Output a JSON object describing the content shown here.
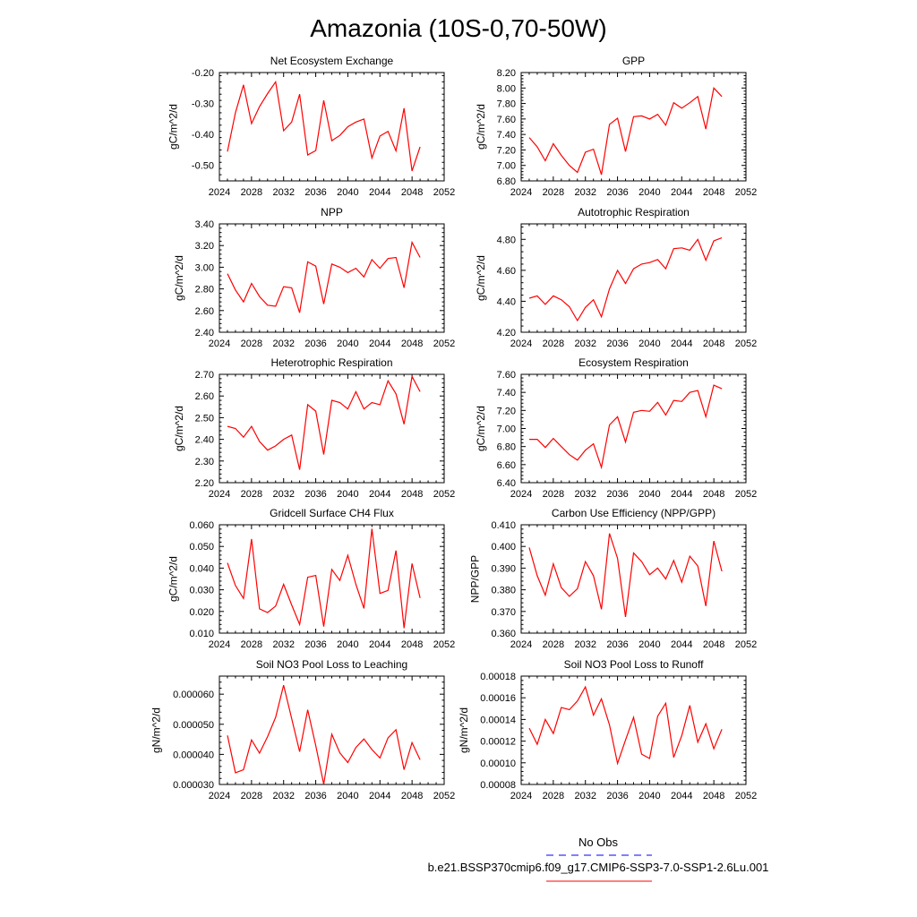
{
  "title": "Amazonia (10S-0,70-50W)",
  "legend": {
    "obs_label": "No Obs",
    "obs_color": "#0000ff",
    "model_label": "b.e21.BSSP370cmip6.f09_g17.CMIP6-SSP3-7.0-SSP1-2.6Lu.001",
    "model_color": "#ff0000"
  },
  "line_color": "#ff0000",
  "chart_data": [
    {
      "type": "line",
      "title": "Net Ecosystem Exchange",
      "ylabel": "gC/m^2/d",
      "xlim": [
        2024,
        2052
      ],
      "xticks": [
        "2024",
        "2028",
        "2032",
        "2036",
        "2040",
        "2044",
        "2048",
        "2052"
      ],
      "ylim": [
        -0.55,
        -0.2
      ],
      "yticks": [
        "-0.20",
        "-0.30",
        "-0.40",
        "-0.50"
      ],
      "x": [
        2025,
        2026,
        2027,
        2028,
        2029,
        2030,
        2031,
        2032,
        2033,
        2034,
        2035,
        2036,
        2037,
        2038,
        2039,
        2040,
        2041,
        2042,
        2043,
        2044,
        2045,
        2046,
        2047,
        2048,
        2049
      ],
      "values": [
        -0.455,
        -0.33,
        -0.24,
        -0.365,
        -0.31,
        -0.268,
        -0.23,
        -0.388,
        -0.36,
        -0.27,
        -0.466,
        -0.452,
        -0.29,
        -0.42,
        -0.403,
        -0.375,
        -0.36,
        -0.35,
        -0.476,
        -0.405,
        -0.39,
        -0.453,
        -0.315,
        -0.518,
        -0.44
      ]
    },
    {
      "type": "line",
      "title": "GPP",
      "ylabel": "gC/m^2/d",
      "xlim": [
        2024,
        2052
      ],
      "xticks": [
        "2024",
        "2028",
        "2032",
        "2036",
        "2040",
        "2044",
        "2048",
        "2052"
      ],
      "ylim": [
        6.8,
        8.2
      ],
      "yticks": [
        "6.80",
        "7.00",
        "7.20",
        "7.40",
        "7.60",
        "7.80",
        "8.00",
        "8.20"
      ],
      "x": [
        2025,
        2026,
        2027,
        2028,
        2029,
        2030,
        2031,
        2032,
        2033,
        2034,
        2035,
        2036,
        2037,
        2038,
        2039,
        2040,
        2041,
        2042,
        2043,
        2044,
        2045,
        2046,
        2047,
        2048,
        2049
      ],
      "values": [
        7.36,
        7.24,
        7.06,
        7.28,
        7.13,
        7.0,
        6.91,
        7.17,
        7.21,
        6.88,
        7.53,
        7.61,
        7.18,
        7.63,
        7.64,
        7.6,
        7.66,
        7.52,
        7.81,
        7.74,
        7.81,
        7.89,
        7.47,
        8.0,
        7.89
      ]
    },
    {
      "type": "line",
      "title": "NPP",
      "ylabel": "gC/m^2/d",
      "xlim": [
        2024,
        2052
      ],
      "xticks": [
        "2024",
        "2028",
        "2032",
        "2036",
        "2040",
        "2044",
        "2048",
        "2052"
      ],
      "ylim": [
        2.4,
        3.4
      ],
      "yticks": [
        "2.40",
        "2.60",
        "2.80",
        "3.00",
        "3.20",
        "3.40"
      ],
      "x": [
        2025,
        2026,
        2027,
        2028,
        2029,
        2030,
        2031,
        2032,
        2033,
        2034,
        2035,
        2036,
        2037,
        2038,
        2039,
        2040,
        2041,
        2042,
        2043,
        2044,
        2045,
        2046,
        2047,
        2048,
        2049
      ],
      "values": [
        2.94,
        2.79,
        2.68,
        2.85,
        2.73,
        2.65,
        2.64,
        2.82,
        2.81,
        2.58,
        3.05,
        3.01,
        2.66,
        3.03,
        3.0,
        2.95,
        2.99,
        2.91,
        3.07,
        2.99,
        3.08,
        3.09,
        2.81,
        3.23,
        3.09
      ]
    },
    {
      "type": "line",
      "title": "Autotrophic Respiration",
      "ylabel": "gC/m^2/d",
      "xlim": [
        2024,
        2052
      ],
      "xticks": [
        "2024",
        "2028",
        "2032",
        "2036",
        "2040",
        "2044",
        "2048",
        "2052"
      ],
      "ylim": [
        4.2,
        4.9
      ],
      "yticks": [
        "4.20",
        "4.40",
        "4.60",
        "4.80"
      ],
      "x": [
        2025,
        2026,
        2027,
        2028,
        2029,
        2030,
        2031,
        2032,
        2033,
        2034,
        2035,
        2036,
        2037,
        2038,
        2039,
        2040,
        2041,
        2042,
        2043,
        2044,
        2045,
        2046,
        2047,
        2048,
        2049
      ],
      "values": [
        4.42,
        4.435,
        4.38,
        4.435,
        4.41,
        4.365,
        4.275,
        4.36,
        4.41,
        4.3,
        4.48,
        4.6,
        4.515,
        4.61,
        4.64,
        4.65,
        4.67,
        4.61,
        4.74,
        4.745,
        4.73,
        4.8,
        4.665,
        4.79,
        4.81
      ]
    },
    {
      "type": "line",
      "title": "Heterotrophic Respiration",
      "ylabel": "gC/m^2/d",
      "xlim": [
        2024,
        2052
      ],
      "xticks": [
        "2024",
        "2028",
        "2032",
        "2036",
        "2040",
        "2044",
        "2048",
        "2052"
      ],
      "ylim": [
        2.2,
        2.7
      ],
      "yticks": [
        "2.20",
        "2.30",
        "2.40",
        "2.50",
        "2.60",
        "2.70"
      ],
      "x": [
        2025,
        2026,
        2027,
        2028,
        2029,
        2030,
        2031,
        2032,
        2033,
        2034,
        2035,
        2036,
        2037,
        2038,
        2039,
        2040,
        2041,
        2042,
        2043,
        2044,
        2045,
        2046,
        2047,
        2048,
        2049
      ],
      "values": [
        2.46,
        2.45,
        2.41,
        2.46,
        2.39,
        2.35,
        2.37,
        2.4,
        2.42,
        2.26,
        2.56,
        2.53,
        2.33,
        2.58,
        2.57,
        2.54,
        2.62,
        2.54,
        2.57,
        2.56,
        2.67,
        2.61,
        2.47,
        2.69,
        2.62
      ]
    },
    {
      "type": "line",
      "title": "Ecosystem Respiration",
      "ylabel": "gC/m^2/d",
      "xlim": [
        2024,
        2052
      ],
      "xticks": [
        "2024",
        "2028",
        "2032",
        "2036",
        "2040",
        "2044",
        "2048",
        "2052"
      ],
      "ylim": [
        6.4,
        7.6
      ],
      "yticks": [
        "6.40",
        "6.60",
        "6.80",
        "7.00",
        "7.20",
        "7.40",
        "7.60"
      ],
      "x": [
        2025,
        2026,
        2027,
        2028,
        2029,
        2030,
        2031,
        2032,
        2033,
        2034,
        2035,
        2036,
        2037,
        2038,
        2039,
        2040,
        2041,
        2042,
        2043,
        2044,
        2045,
        2046,
        2047,
        2048,
        2049
      ],
      "values": [
        6.88,
        6.88,
        6.79,
        6.89,
        6.8,
        6.71,
        6.65,
        6.76,
        6.83,
        6.57,
        7.04,
        7.13,
        6.85,
        7.18,
        7.2,
        7.19,
        7.29,
        7.15,
        7.31,
        7.3,
        7.4,
        7.42,
        7.13,
        7.48,
        7.44
      ]
    },
    {
      "type": "line",
      "title": "Gridcell Surface CH4 Flux",
      "ylabel": "gC/m^2/d",
      "xlim": [
        2024,
        2052
      ],
      "xticks": [
        "2024",
        "2028",
        "2032",
        "2036",
        "2040",
        "2044",
        "2048",
        "2052"
      ],
      "ylim": [
        0.01,
        0.06
      ],
      "yticks": [
        "0.010",
        "0.020",
        "0.030",
        "0.040",
        "0.050",
        "0.060"
      ],
      "x": [
        2025,
        2026,
        2027,
        2028,
        2029,
        2030,
        2031,
        2032,
        2033,
        2034,
        2035,
        2036,
        2037,
        2038,
        2039,
        2040,
        2041,
        2042,
        2043,
        2044,
        2045,
        2046,
        2047,
        2048,
        2049
      ],
      "values": [
        0.0424,
        0.032,
        0.026,
        0.0534,
        0.0212,
        0.0195,
        0.0225,
        0.0325,
        0.023,
        0.014,
        0.0358,
        0.0366,
        0.013,
        0.0394,
        0.0343,
        0.0459,
        0.0325,
        0.0214,
        0.0582,
        0.0283,
        0.0297,
        0.0481,
        0.0123,
        0.0421,
        0.0262
      ]
    },
    {
      "type": "line",
      "title": "Carbon Use Efficiency (NPP/GPP)",
      "ylabel": "NPP/GPP",
      "xlim": [
        2024,
        2052
      ],
      "xticks": [
        "2024",
        "2028",
        "2032",
        "2036",
        "2040",
        "2044",
        "2048",
        "2052"
      ],
      "ylim": [
        0.36,
        0.41
      ],
      "yticks": [
        "0.360",
        "0.370",
        "0.380",
        "0.390",
        "0.400",
        "0.410"
      ],
      "x": [
        2025,
        2026,
        2027,
        2028,
        2029,
        2030,
        2031,
        2032,
        2033,
        2034,
        2035,
        2036,
        2037,
        2038,
        2039,
        2040,
        2041,
        2042,
        2043,
        2044,
        2045,
        2046,
        2047,
        2048,
        2049
      ],
      "values": [
        0.3995,
        0.3865,
        0.3775,
        0.392,
        0.381,
        0.377,
        0.3805,
        0.393,
        0.3865,
        0.371,
        0.406,
        0.3945,
        0.3675,
        0.397,
        0.393,
        0.387,
        0.39,
        0.385,
        0.3935,
        0.3835,
        0.3955,
        0.391,
        0.3725,
        0.4025,
        0.3885
      ]
    },
    {
      "type": "line",
      "title": "Soil NO3 Pool Loss to Leaching",
      "ylabel": "gN/m^2/d",
      "xlim": [
        2024,
        2052
      ],
      "xticks": [
        "2024",
        "2028",
        "2032",
        "2036",
        "2040",
        "2044",
        "2048",
        "2052"
      ],
      "ylim": [
        3e-05,
        6.6e-05
      ],
      "yticks": [
        "0.000030",
        "0.000040",
        "0.000050",
        "0.000060"
      ],
      "x": [
        2025,
        2026,
        2027,
        2028,
        2029,
        2030,
        2031,
        2032,
        2033,
        2034,
        2035,
        2036,
        2037,
        2038,
        2039,
        2040,
        2041,
        2042,
        2043,
        2044,
        2045,
        2046,
        2047,
        2048,
        2049
      ],
      "values": [
        4.63e-05,
        3.39e-05,
        3.49e-05,
        4.48e-05,
        4.04e-05,
        4.59e-05,
        5.23e-05,
        6.3e-05,
        5.19e-05,
        4.09e-05,
        5.48e-05,
        4.29e-05,
        3.01e-05,
        4.67e-05,
        4.05e-05,
        3.73e-05,
        4.23e-05,
        4.51e-05,
        4.16e-05,
        3.88e-05,
        4.55e-05,
        4.82e-05,
        3.49e-05,
        4.39e-05,
        3.82e-05
      ]
    },
    {
      "type": "line",
      "title": "Soil NO3 Pool Loss to Runoff",
      "ylabel": "gN/m^2/d",
      "xlim": [
        2024,
        2052
      ],
      "xticks": [
        "2024",
        "2028",
        "2032",
        "2036",
        "2040",
        "2044",
        "2048",
        "2052"
      ],
      "ylim": [
        8e-05,
        0.00018
      ],
      "yticks": [
        "0.00008",
        "0.00010",
        "0.00012",
        "0.00014",
        "0.00016",
        "0.00018"
      ],
      "x": [
        2025,
        2026,
        2027,
        2028,
        2029,
        2030,
        2031,
        2032,
        2033,
        2034,
        2035,
        2036,
        2037,
        2038,
        2039,
        2040,
        2041,
        2042,
        2043,
        2044,
        2045,
        2046,
        2047,
        2048,
        2049
      ],
      "values": [
        0.000132,
        0.000117,
        0.00014,
        0.000127,
        0.000151,
        0.000149,
        0.000157,
        0.00017,
        0.000144,
        0.000159,
        0.000135,
        9.94e-05,
        0.000121,
        0.000142,
        0.000108,
        0.000104,
        0.000143,
        0.000155,
        0.000105,
        0.000125,
        0.000153,
        0.000119,
        0.000136,
        0.000113,
        0.000131
      ]
    }
  ]
}
